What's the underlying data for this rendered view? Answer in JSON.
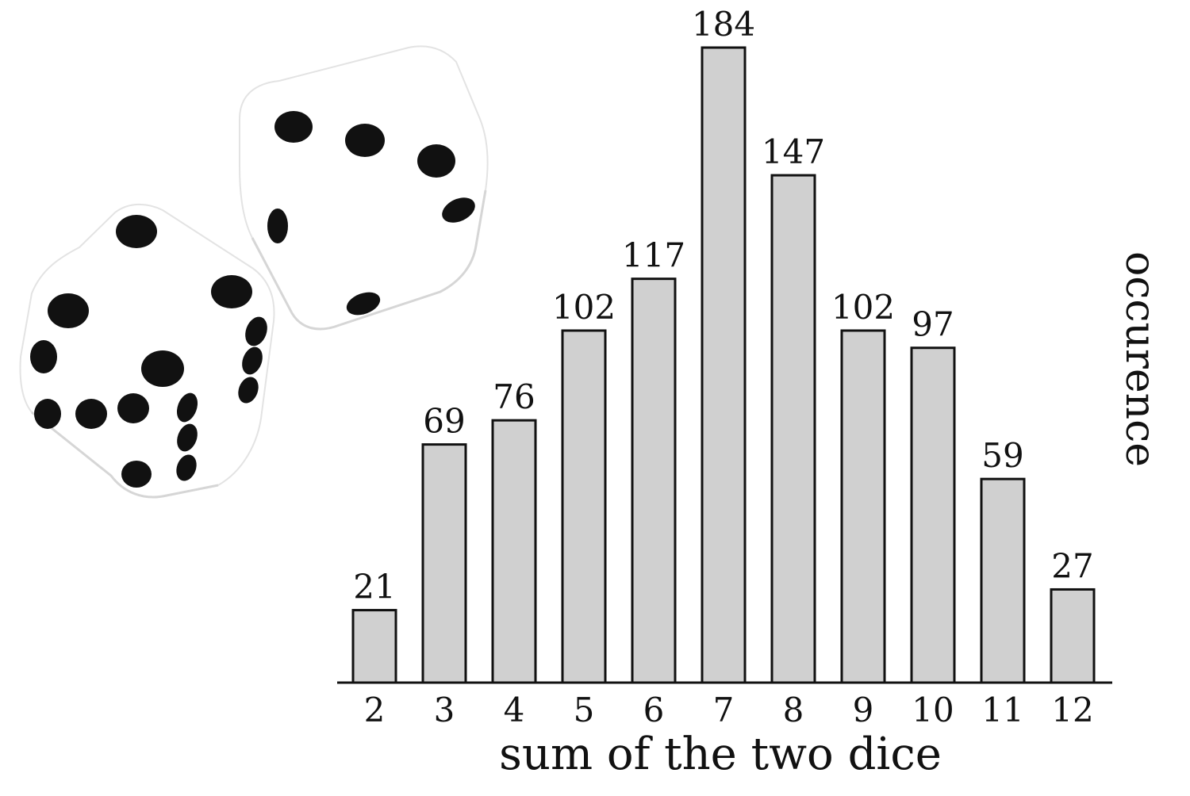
{
  "chart_data": {
    "type": "bar",
    "categories": [
      "2",
      "3",
      "4",
      "5",
      "6",
      "7",
      "8",
      "9",
      "10",
      "11",
      "12"
    ],
    "values": [
      21,
      69,
      76,
      102,
      117,
      184,
      147,
      102,
      97,
      59,
      27
    ],
    "xlabel": "sum of the two dice",
    "ylabel": "occurence",
    "ylim": [
      0,
      184
    ],
    "grid": false,
    "data_labels": true
  },
  "colors": {
    "bar_fill": "#d0d0d0",
    "bar_stroke": "#111111",
    "axis": "#111111",
    "die_face": "#ffffff",
    "die_pip": "#111111"
  },
  "illustration": {
    "icon": "two-dice-icon"
  }
}
